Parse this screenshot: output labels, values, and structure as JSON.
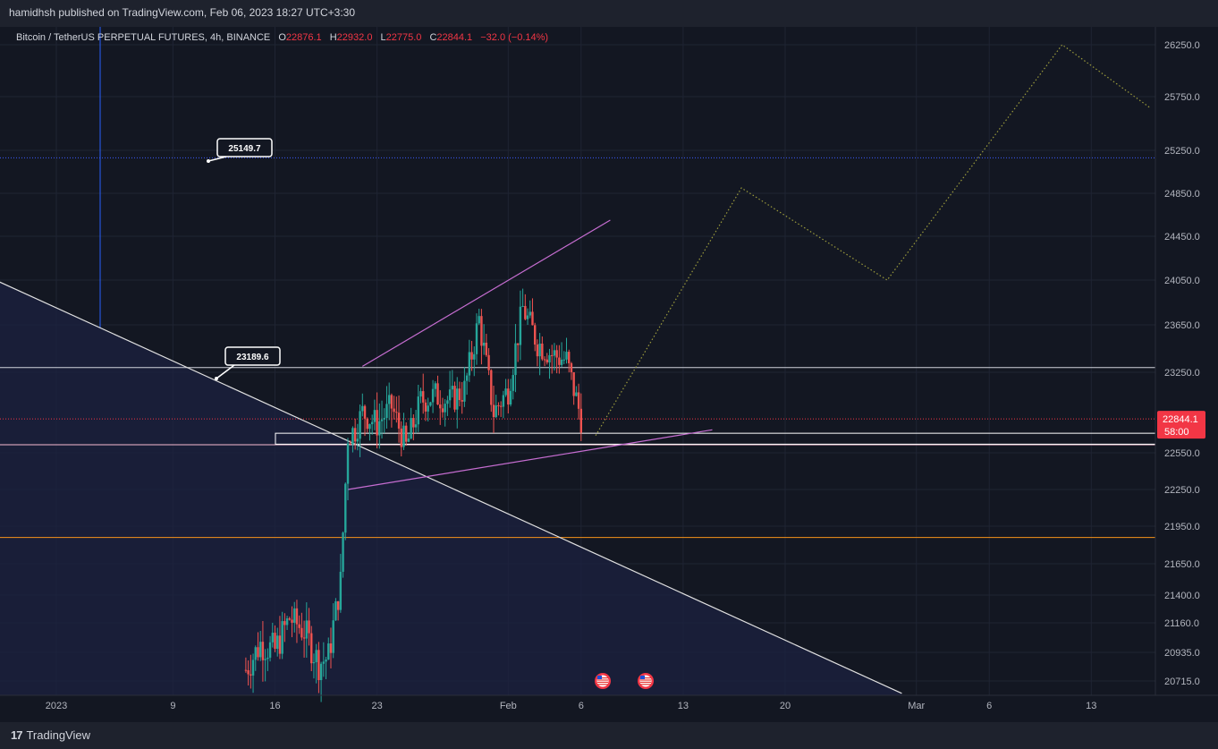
{
  "header": {
    "publisher_text": "hamidhsh published on TradingView.com, Feb 06, 2023 18:27 UTC+3:30"
  },
  "legend": {
    "symbol": "Bitcoin / TetherUS PERPETUAL FUTURES, 4h, BINANCE",
    "open_label": "O",
    "open": "22876.1",
    "high_label": "H",
    "high": "22932.0",
    "low_label": "L",
    "low": "22775.0",
    "close_label": "C",
    "close": "22844.1",
    "change": "−32.0 (−0.14%)"
  },
  "footer": {
    "brand": "TradingView",
    "brand_icon": "tradingview-logo-icon"
  },
  "colors": {
    "background": "#131722",
    "up": "#26a69a",
    "down": "#ef5350",
    "price_label": "#f23645",
    "channel": "#c66dd1",
    "projection": "#9b9b3c",
    "orange_level": "#f7931a",
    "blue_dotted": "#3d5afe"
  },
  "chart_data": {
    "type": "candlestick",
    "timeframe": "4h",
    "y_tick_labels": [
      "26250.0",
      "25750.0",
      "25250.0",
      "24850.0",
      "24450.0",
      "24050.0",
      "23650.0",
      "23250.0",
      "22550.0",
      "22250.0",
      "21950.0",
      "21650.0",
      "21400.0",
      "21160.0",
      "20935.0",
      "20715.0"
    ],
    "x_tick_labels": [
      "2023",
      "9",
      "16",
      "23",
      "Feb",
      "6",
      "13",
      "20",
      "Mar",
      "6",
      "13"
    ],
    "last_price": "22844.1",
    "countdown": "58:00",
    "annotations": [
      {
        "label": "25149.7"
      },
      {
        "label": "23189.6"
      }
    ],
    "levels": [
      {
        "kind": "white-line",
        "price": 23290
      },
      {
        "kind": "orange-line",
        "price": 21860
      },
      {
        "kind": "pink-line",
        "price": 22620
      },
      {
        "kind": "blue-dotted",
        "price": 25180
      }
    ],
    "zone": {
      "price_low": 22625,
      "price_high": 22720
    },
    "price_path": [
      [
        "2023-01-14T00:00",
        20800
      ],
      [
        "2023-01-15T00:00",
        21000
      ],
      [
        "2023-01-16T00:00",
        20950
      ],
      [
        "2023-01-17T00:00",
        21200
      ],
      [
        "2023-01-18T00:00",
        21100
      ],
      [
        "2023-01-19T00:00",
        20850
      ],
      [
        "2023-01-19T16:00",
        20900
      ],
      [
        "2023-01-20T12:00",
        21500
      ],
      [
        "2023-01-21T00:00",
        22700
      ],
      [
        "2023-01-21T12:00",
        22750
      ],
      [
        "2023-01-22T00:00",
        22900
      ],
      [
        "2023-01-23T00:00",
        22800
      ],
      [
        "2023-01-24T00:00",
        22950
      ],
      [
        "2023-01-25T00:00",
        22600
      ],
      [
        "2023-01-26T00:00",
        23000
      ],
      [
        "2023-01-27T00:00",
        23050
      ],
      [
        "2023-01-28T00:00",
        23000
      ],
      [
        "2023-01-29T00:00",
        23100
      ],
      [
        "2023-01-30T00:00",
        23700
      ],
      [
        "2023-01-31T00:00",
        22900
      ],
      [
        "2023-02-01T00:00",
        23100
      ],
      [
        "2023-02-02T00:00",
        23800
      ],
      [
        "2023-02-03T00:00",
        23500
      ],
      [
        "2023-02-04T00:00",
        23400
      ],
      [
        "2023-02-05T00:00",
        23350
      ],
      [
        "2023-02-06T00:00",
        22850
      ]
    ],
    "projection_path": [
      [
        "2023-02-07",
        22700
      ],
      [
        "2023-02-17",
        24900
      ],
      [
        "2023-02-27",
        24050
      ],
      [
        "2023-03-11",
        26250
      ],
      [
        "2023-03-17",
        25650
      ]
    ],
    "channel_upper": [
      [
        "2023-01-22",
        23300
      ],
      [
        "2023-02-08",
        24600
      ]
    ],
    "channel_lower": [
      [
        "2023-01-21",
        22250
      ],
      [
        "2023-02-15",
        22750
      ]
    ],
    "downtrend_line": [
      [
        "2022-12-27",
        24100
      ],
      [
        "2023-02-28",
        20620
      ]
    ],
    "events": [
      "us-flag-icon",
      "us-flag-icon"
    ]
  }
}
